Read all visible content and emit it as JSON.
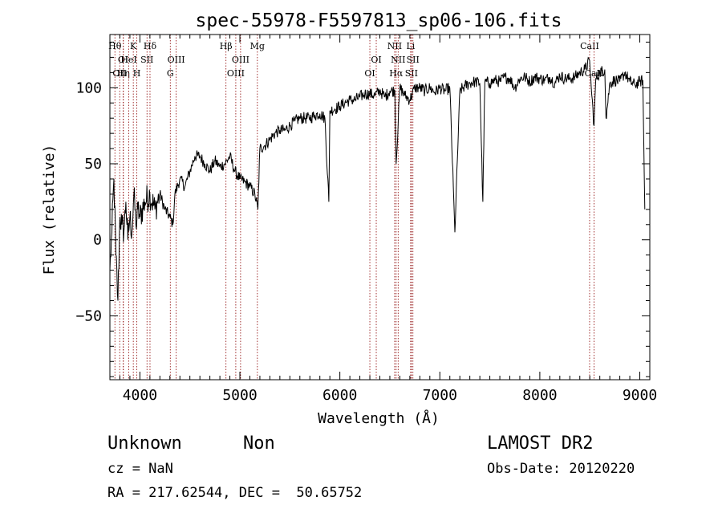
{
  "chart_data": {
    "type": "line",
    "title": "spec-55978-F5597813_sp06-106.fits",
    "xlabel": "Wavelength (Å)",
    "ylabel": "Flux (relative)",
    "xlim": [
      3700,
      9100
    ],
    "ylim": [
      -92,
      135
    ],
    "xticks": [
      4000,
      5000,
      6000,
      7000,
      8000,
      9000
    ],
    "yticks": [
      -50,
      0,
      50,
      100
    ],
    "grid": false,
    "legend": "none",
    "line_color": "#000000",
    "marker_color": "#8b0000",
    "series": [
      {
        "x": [
          3700,
          3720,
          3740,
          3760,
          3780,
          3800,
          3820,
          3840,
          3860,
          3880,
          3900,
          3920,
          3940,
          3960,
          3980,
          4000,
          4050,
          4100,
          4150,
          4200,
          4250,
          4300,
          4330,
          4350,
          4400,
          4450,
          4500,
          4550,
          4600,
          4650,
          4700,
          4750,
          4800,
          4850,
          4900,
          4950,
          5000,
          5050,
          5100,
          5150,
          5180,
          5200,
          5250,
          5300,
          5350,
          5400,
          5450,
          5500,
          5550,
          5600,
          5650,
          5700,
          5750,
          5800,
          5850,
          5890,
          5900,
          5950,
          6000,
          6050,
          6100,
          6150,
          6200,
          6250,
          6300,
          6350,
          6400,
          6450,
          6500,
          6550,
          6563,
          6600,
          6650,
          6700,
          6750,
          6800,
          6850,
          6900,
          6950,
          7000,
          7050,
          7100,
          7150,
          7200,
          7250,
          7300,
          7350,
          7400,
          7430,
          7450,
          7500,
          7550,
          7600,
          7650,
          7700,
          7750,
          7800,
          7850,
          7900,
          7950,
          8000,
          8050,
          8100,
          8150,
          8200,
          8250,
          8300,
          8350,
          8400,
          8450,
          8498,
          8520,
          8542,
          8560,
          8600,
          8650,
          8662,
          8700,
          8750,
          8800,
          8850,
          8900,
          8950,
          9000,
          9030,
          9050
        ],
        "y": [
          -20,
          5,
          40,
          -10,
          -40,
          15,
          10,
          5,
          25,
          0,
          15,
          5,
          30,
          10,
          20,
          15,
          25,
          30,
          20,
          30,
          20,
          15,
          10,
          30,
          40,
          35,
          45,
          55,
          55,
          50,
          45,
          52,
          48,
          50,
          55,
          45,
          40,
          38,
          35,
          30,
          20,
          60,
          62,
          66,
          70,
          72,
          72,
          75,
          78,
          80,
          80,
          80,
          82,
          83,
          80,
          25,
          85,
          86,
          88,
          90,
          92,
          92,
          94,
          96,
          96,
          95,
          98,
          94,
          98,
          98,
          50,
          100,
          95,
          92,
          100,
          100,
          98,
          100,
          97,
          100,
          98,
          100,
          5,
          98,
          101,
          103,
          104,
          103,
          25,
          104,
          103,
          105,
          104,
          107,
          106,
          100,
          106,
          107,
          104,
          107,
          106,
          105,
          107,
          103,
          108,
          106,
          106,
          107,
          110,
          112,
          118,
          95,
          75,
          106,
          110,
          112,
          80,
          103,
          105,
          104,
          110,
          104,
          102,
          104,
          105,
          20
        ]
      }
    ],
    "line_markers": [
      {
        "wavelength": 3750,
        "label": "Hθ",
        "row": 0
      },
      {
        "wavelength": 3798,
        "label": "OII",
        "row": 2
      },
      {
        "wavelength": 3833,
        "label": "OI",
        "row": 1
      },
      {
        "wavelength": 3835,
        "label": "Hη",
        "row": 2
      },
      {
        "wavelength": 3889,
        "label": "HeI",
        "row": 1
      },
      {
        "wavelength": 3934,
        "label": "K",
        "row": 0
      },
      {
        "wavelength": 3969,
        "label": "H",
        "row": 2
      },
      {
        "wavelength": 4071,
        "label": "SII",
        "row": 1
      },
      {
        "wavelength": 4101,
        "label": "Hδ",
        "row": 0
      },
      {
        "wavelength": 4304,
        "label": "G",
        "row": 2
      },
      {
        "wavelength": 4363,
        "label": "OIII",
        "row": 1
      },
      {
        "wavelength": 4861,
        "label": "Hβ",
        "row": 0
      },
      {
        "wavelength": 4959,
        "label": "OIII",
        "row": 2
      },
      {
        "wavelength": 5007,
        "label": "OIII",
        "row": 1
      },
      {
        "wavelength": 5175,
        "label": "Mg",
        "row": 0
      },
      {
        "wavelength": 6300,
        "label": "OI",
        "row": 2
      },
      {
        "wavelength": 6364,
        "label": "OI",
        "row": 1
      },
      {
        "wavelength": 6548,
        "label": "NII",
        "row": 0
      },
      {
        "wavelength": 6563,
        "label": "Hα",
        "row": 2
      },
      {
        "wavelength": 6583,
        "label": "NII",
        "row": 1
      },
      {
        "wavelength": 6708,
        "label": "Li",
        "row": 0
      },
      {
        "wavelength": 6716,
        "label": "SII",
        "row": 2
      },
      {
        "wavelength": 6731,
        "label": "SII",
        "row": 1
      },
      {
        "wavelength": 8498,
        "label": "CaII",
        "row": 0
      },
      {
        "wavelength": 8542,
        "label": "CaII",
        "row": 2
      }
    ]
  },
  "info": {
    "class": "Unknown",
    "subclass": "Non",
    "survey": "LAMOST DR2",
    "cz": "cz = NaN",
    "obs_date": "Obs-Date: 20120220",
    "coords": "RA = 217.62544, DEC =  50.65752"
  }
}
